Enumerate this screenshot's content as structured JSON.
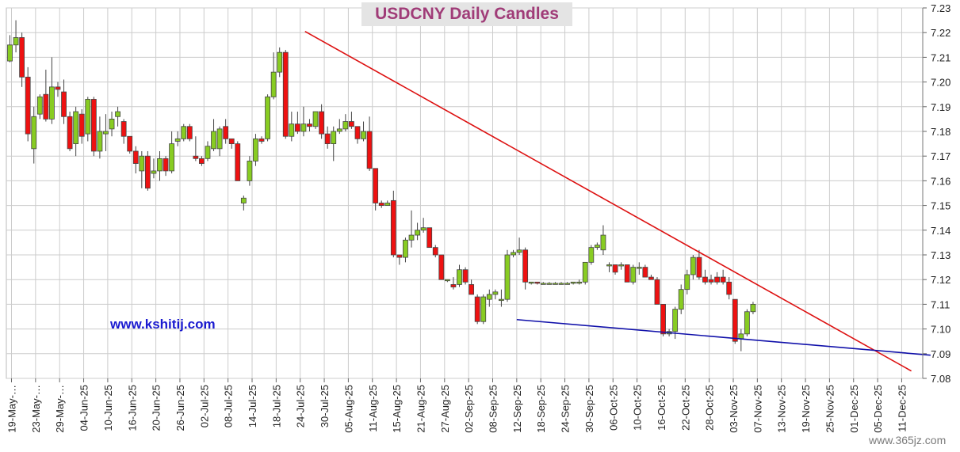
{
  "site": "www.kshitij.com",
  "watermark": "www.365jz.com",
  "chart_data": {
    "type": "candlestick",
    "title": "USDCNY Daily Candles",
    "ylim": [
      7.08,
      7.23
    ],
    "y_ticks": [
      "7.23",
      "7.22",
      "7.21",
      "7.20",
      "7.19",
      "7.18",
      "7.17",
      "7.16",
      "7.15",
      "7.14",
      "7.13",
      "7.12",
      "7.11",
      "7.10",
      "7.09",
      "7.08"
    ],
    "x_ticks": [
      "19-May-25",
      "23-May-25",
      "29-May-25",
      "04-Jun-25",
      "10-Jun-25",
      "16-Jun-25",
      "20-Jun-25",
      "26-Jun-25",
      "02-Jul-25",
      "08-Jul-25",
      "14-Jul-25",
      "18-Jul-25",
      "24-Jul-25",
      "30-Jul-25",
      "05-Aug-25",
      "11-Aug-25",
      "15-Aug-25",
      "21-Aug-25",
      "27-Aug-25",
      "02-Sep-25",
      "08-Sep-25",
      "12-Sep-25",
      "18-Sep-25",
      "24-Sep-25",
      "30-Sep-25",
      "06-Oct-25",
      "10-Oct-25",
      "16-Oct-25",
      "22-Oct-25",
      "28-Oct-25",
      "03-Nov-25",
      "07-Nov-25",
      "13-Nov-25",
      "19-Nov-25",
      "25-Nov-25",
      "01-Dec-25",
      "05-Dec-25",
      "11-Dec-25"
    ],
    "x_tick_display": [
      "19-May-…",
      "23-May-…",
      "29-May-…",
      "04-Jun-25",
      "10-Jun-25",
      "16-Jun-25",
      "20-Jun-25",
      "26-Jun-25",
      "02-Jul-25",
      "08-Jul-25",
      "14-Jul-25",
      "18-Jul-25",
      "24-Jul-25",
      "30-Jul-25",
      "05-Aug-25",
      "11-Aug-25",
      "15-Aug-25",
      "21-Aug-25",
      "27-Aug-25",
      "02-Sep-25",
      "08-Sep-25",
      "12-Sep-25",
      "18-Sep-25",
      "24-Sep-25",
      "30-Sep-25",
      "06-Oct-25",
      "10-Oct-25",
      "16-Oct-25",
      "22-Oct-25",
      "28-Oct-25",
      "03-Nov-25",
      "07-Nov-25",
      "13-Nov-25",
      "19-Nov-25",
      "25-Nov-25",
      "01-Dec-25",
      "05-Dec-25",
      "11-Dec-25"
    ],
    "grid": true,
    "candles": [
      {
        "o": 7.2085,
        "h": 7.219,
        "l": 7.208,
        "c": 7.215
      },
      {
        "o": 7.215,
        "h": 7.225,
        "l": 7.212,
        "c": 7.218
      },
      {
        "o": 7.218,
        "h": 7.22,
        "l": 7.198,
        "c": 7.202
      },
      {
        "o": 7.202,
        "h": 7.206,
        "l": 7.176,
        "c": 7.179
      },
      {
        "o": 7.173,
        "h": 7.19,
        "l": 7.167,
        "c": 7.186
      },
      {
        "o": 7.187,
        "h": 7.195,
        "l": 7.185,
        "c": 7.194
      },
      {
        "o": 7.195,
        "h": 7.205,
        "l": 7.184,
        "c": 7.185
      },
      {
        "o": 7.185,
        "h": 7.21,
        "l": 7.183,
        "c": 7.198
      },
      {
        "o": 7.198,
        "h": 7.2,
        "l": 7.194,
        "c": 7.197
      },
      {
        "o": 7.196,
        "h": 7.201,
        "l": 7.183,
        "c": 7.186
      },
      {
        "o": 7.186,
        "h": 7.188,
        "l": 7.172,
        "c": 7.173
      },
      {
        "o": 7.175,
        "h": 7.19,
        "l": 7.17,
        "c": 7.188
      },
      {
        "o": 7.187,
        "h": 7.189,
        "l": 7.175,
        "c": 7.178
      },
      {
        "o": 7.179,
        "h": 7.194,
        "l": 7.176,
        "c": 7.193
      },
      {
        "o": 7.193,
        "h": 7.194,
        "l": 7.17,
        "c": 7.172
      },
      {
        "o": 7.172,
        "h": 7.186,
        "l": 7.169,
        "c": 7.18
      },
      {
        "o": 7.179,
        "h": 7.187,
        "l": 7.172,
        "c": 7.18
      },
      {
        "o": 7.181,
        "h": 7.188,
        "l": 7.178,
        "c": 7.185
      },
      {
        "o": 7.186,
        "h": 7.19,
        "l": 7.182,
        "c": 7.188
      },
      {
        "o": 7.184,
        "h": 7.185,
        "l": 7.175,
        "c": 7.178
      },
      {
        "o": 7.178,
        "h": 7.178,
        "l": 7.171,
        "c": 7.172
      },
      {
        "o": 7.172,
        "h": 7.174,
        "l": 7.163,
        "c": 7.167
      },
      {
        "o": 7.164,
        "h": 7.172,
        "l": 7.157,
        "c": 7.17
      },
      {
        "o": 7.17,
        "h": 7.172,
        "l": 7.156,
        "c": 7.157
      },
      {
        "o": 7.163,
        "h": 7.169,
        "l": 7.161,
        "c": 7.164
      },
      {
        "o": 7.164,
        "h": 7.172,
        "l": 7.16,
        "c": 7.169
      },
      {
        "o": 7.169,
        "h": 7.17,
        "l": 7.162,
        "c": 7.164
      },
      {
        "o": 7.164,
        "h": 7.18,
        "l": 7.163,
        "c": 7.175
      },
      {
        "o": 7.176,
        "h": 7.18,
        "l": 7.174,
        "c": 7.177
      },
      {
        "o": 7.177,
        "h": 7.183,
        "l": 7.176,
        "c": 7.182
      },
      {
        "o": 7.182,
        "h": 7.183,
        "l": 7.176,
        "c": 7.177
      },
      {
        "o": 7.17,
        "h": 7.178,
        "l": 7.168,
        "c": 7.169
      },
      {
        "o": 7.169,
        "h": 7.17,
        "l": 7.166,
        "c": 7.167
      },
      {
        "o": 7.169,
        "h": 7.176,
        "l": 7.168,
        "c": 7.174
      },
      {
        "o": 7.173,
        "h": 7.185,
        "l": 7.172,
        "c": 7.18
      },
      {
        "o": 7.173,
        "h": 7.182,
        "l": 7.17,
        "c": 7.181
      },
      {
        "o": 7.182,
        "h": 7.185,
        "l": 7.175,
        "c": 7.177
      },
      {
        "o": 7.177,
        "h": 7.177,
        "l": 7.173,
        "c": 7.175
      },
      {
        "o": 7.175,
        "h": 7.176,
        "l": 7.16,
        "c": 7.16
      },
      {
        "o": 7.151,
        "h": 7.154,
        "l": 7.148,
        "c": 7.153
      },
      {
        "o": 7.16,
        "h": 7.17,
        "l": 7.158,
        "c": 7.168
      },
      {
        "o": 7.168,
        "h": 7.179,
        "l": 7.166,
        "c": 7.177
      },
      {
        "o": 7.177,
        "h": 7.178,
        "l": 7.175,
        "c": 7.176
      },
      {
        "o": 7.177,
        "h": 7.195,
        "l": 7.176,
        "c": 7.194
      },
      {
        "o": 7.194,
        "h": 7.212,
        "l": 7.193,
        "c": 7.204
      },
      {
        "o": 7.204,
        "h": 7.214,
        "l": 7.202,
        "c": 7.212
      },
      {
        "o": 7.212,
        "h": 7.213,
        "l": 7.177,
        "c": 7.178
      },
      {
        "o": 7.178,
        "h": 7.188,
        "l": 7.176,
        "c": 7.183
      },
      {
        "o": 7.183,
        "h": 7.188,
        "l": 7.179,
        "c": 7.18
      },
      {
        "o": 7.18,
        "h": 7.19,
        "l": 7.178,
        "c": 7.183
      },
      {
        "o": 7.183,
        "h": 7.185,
        "l": 7.18,
        "c": 7.182
      },
      {
        "o": 7.182,
        "h": 7.188,
        "l": 7.181,
        "c": 7.188
      },
      {
        "o": 7.188,
        "h": 7.191,
        "l": 7.177,
        "c": 7.179
      },
      {
        "o": 7.179,
        "h": 7.182,
        "l": 7.173,
        "c": 7.175
      },
      {
        "o": 7.175,
        "h": 7.182,
        "l": 7.168,
        "c": 7.18
      },
      {
        "o": 7.18,
        "h": 7.185,
        "l": 7.179,
        "c": 7.181
      },
      {
        "o": 7.181,
        "h": 7.187,
        "l": 7.18,
        "c": 7.184
      },
      {
        "o": 7.184,
        "h": 7.188,
        "l": 7.181,
        "c": 7.182
      },
      {
        "o": 7.182,
        "h": 7.182,
        "l": 7.175,
        "c": 7.177
      },
      {
        "o": 7.177,
        "h": 7.184,
        "l": 7.176,
        "c": 7.18
      },
      {
        "o": 7.18,
        "h": 7.186,
        "l": 7.164,
        "c": 7.165
      },
      {
        "o": 7.165,
        "h": 7.165,
        "l": 7.148,
        "c": 7.151
      },
      {
        "o": 7.151,
        "h": 7.152,
        "l": 7.149,
        "c": 7.15
      },
      {
        "o": 7.15,
        "h": 7.152,
        "l": 7.15,
        "c": 7.151
      },
      {
        "o": 7.152,
        "h": 7.156,
        "l": 7.129,
        "c": 7.13
      },
      {
        "o": 7.13,
        "h": 7.13,
        "l": 7.126,
        "c": 7.129
      },
      {
        "o": 7.129,
        "h": 7.137,
        "l": 7.127,
        "c": 7.136
      },
      {
        "o": 7.136,
        "h": 7.148,
        "l": 7.133,
        "c": 7.138
      },
      {
        "o": 7.138,
        "h": 7.143,
        "l": 7.136,
        "c": 7.14
      },
      {
        "o": 7.14,
        "h": 7.145,
        "l": 7.139,
        "c": 7.141
      },
      {
        "o": 7.141,
        "h": 7.141,
        "l": 7.133,
        "c": 7.133
      },
      {
        "o": 7.133,
        "h": 7.134,
        "l": 7.129,
        "c": 7.13
      },
      {
        "o": 7.13,
        "h": 7.13,
        "l": 7.12,
        "c": 7.12
      },
      {
        "o": 7.12,
        "h": 7.12,
        "l": 7.119,
        "c": 7.12
      },
      {
        "o": 7.118,
        "h": 7.121,
        "l": 7.116,
        "c": 7.117
      },
      {
        "o": 7.118,
        "h": 7.126,
        "l": 7.117,
        "c": 7.124
      },
      {
        "o": 7.124,
        "h": 7.125,
        "l": 7.118,
        "c": 7.119
      },
      {
        "o": 7.118,
        "h": 7.12,
        "l": 7.114,
        "c": 7.114
      },
      {
        "o": 7.113,
        "h": 7.114,
        "l": 7.102,
        "c": 7.103
      },
      {
        "o": 7.103,
        "h": 7.114,
        "l": 7.102,
        "c": 7.113
      },
      {
        "o": 7.112,
        "h": 7.116,
        "l": 7.109,
        "c": 7.114
      },
      {
        "o": 7.114,
        "h": 7.116,
        "l": 7.112,
        "c": 7.115
      },
      {
        "o": 7.112,
        "h": 7.116,
        "l": 7.109,
        "c": 7.112
      },
      {
        "o": 7.112,
        "h": 7.132,
        "l": 7.111,
        "c": 7.13
      },
      {
        "o": 7.13,
        "h": 7.132,
        "l": 7.129,
        "c": 7.131
      },
      {
        "o": 7.131,
        "h": 7.137,
        "l": 7.13,
        "c": 7.132
      },
      {
        "o": 7.132,
        "h": 7.133,
        "l": 7.116,
        "c": 7.119
      },
      {
        "o": 7.119,
        "h": 7.119,
        "l": 7.118,
        "c": 7.119
      },
      {
        "o": 7.119,
        "h": 7.119,
        "l": 7.118,
        "c": 7.1185
      },
      {
        "o": 7.1185,
        "h": 7.119,
        "l": 7.118,
        "c": 7.1185
      },
      {
        "o": 7.1185,
        "h": 7.119,
        "l": 7.118,
        "c": 7.1185
      },
      {
        "o": 7.1185,
        "h": 7.119,
        "l": 7.118,
        "c": 7.1185
      },
      {
        "o": 7.1185,
        "h": 7.119,
        "l": 7.118,
        "c": 7.1185
      },
      {
        "o": 7.1185,
        "h": 7.119,
        "l": 7.118,
        "c": 7.1185
      },
      {
        "o": 7.1185,
        "h": 7.119,
        "l": 7.118,
        "c": 7.119
      },
      {
        "o": 7.119,
        "h": 7.12,
        "l": 7.118,
        "c": 7.119
      },
      {
        "o": 7.119,
        "h": 7.127,
        "l": 7.118,
        "c": 7.127
      },
      {
        "o": 7.127,
        "h": 7.134,
        "l": 7.126,
        "c": 7.133
      },
      {
        "o": 7.133,
        "h": 7.135,
        "l": 7.132,
        "c": 7.134
      },
      {
        "o": 7.132,
        "h": 7.142,
        "l": 7.13,
        "c": 7.138
      },
      {
        "o": 7.126,
        "h": 7.127,
        "l": 7.123,
        "c": 7.126
      },
      {
        "o": 7.126,
        "h": 7.126,
        "l": 7.122,
        "c": 7.123
      },
      {
        "o": 7.126,
        "h": 7.127,
        "l": 7.124,
        "c": 7.126
      },
      {
        "o": 7.126,
        "h": 7.126,
        "l": 7.119,
        "c": 7.119
      },
      {
        "o": 7.119,
        "h": 7.126,
        "l": 7.118,
        "c": 7.125
      },
      {
        "o": 7.125,
        "h": 7.127,
        "l": 7.122,
        "c": 7.125
      },
      {
        "o": 7.125,
        "h": 7.126,
        "l": 7.121,
        "c": 7.121
      },
      {
        "o": 7.121,
        "h": 7.122,
        "l": 7.12,
        "c": 7.12
      },
      {
        "o": 7.12,
        "h": 7.121,
        "l": 7.11,
        "c": 7.11
      },
      {
        "o": 7.11,
        "h": 7.11,
        "l": 7.097,
        "c": 7.098
      },
      {
        "o": 7.098,
        "h": 7.1,
        "l": 7.097,
        "c": 7.099
      },
      {
        "o": 7.099,
        "h": 7.109,
        "l": 7.096,
        "c": 7.108
      },
      {
        "o": 7.108,
        "h": 7.118,
        "l": 7.106,
        "c": 7.116
      },
      {
        "o": 7.116,
        "h": 7.124,
        "l": 7.114,
        "c": 7.122
      },
      {
        "o": 7.122,
        "h": 7.13,
        "l": 7.12,
        "c": 7.129
      },
      {
        "o": 7.129,
        "h": 7.132,
        "l": 7.12,
        "c": 7.121
      },
      {
        "o": 7.121,
        "h": 7.124,
        "l": 7.118,
        "c": 7.119
      },
      {
        "o": 7.12,
        "h": 7.122,
        "l": 7.118,
        "c": 7.119
      },
      {
        "o": 7.121,
        "h": 7.123,
        "l": 7.118,
        "c": 7.119
      },
      {
        "o": 7.121,
        "h": 7.124,
        "l": 7.118,
        "c": 7.119
      },
      {
        "o": 7.119,
        "h": 7.121,
        "l": 7.112,
        "c": 7.114
      },
      {
        "o": 7.112,
        "h": 7.112,
        "l": 7.094,
        "c": 7.095
      },
      {
        "o": 7.096,
        "h": 7.1,
        "l": 7.091,
        "c": 7.098
      },
      {
        "o": 7.098,
        "h": 7.108,
        "l": 7.097,
        "c": 7.107
      },
      {
        "o": 7.107,
        "h": 7.111,
        "l": 7.106,
        "c": 7.11
      }
    ],
    "trendlines": [
      {
        "name": "resistance",
        "color": "#dd1111",
        "from": [
          12.2,
          7.2205
        ],
        "to": [
          37.4,
          7.083
        ]
      },
      {
        "name": "support",
        "color": "#1111aa",
        "from": [
          21.0,
          7.1038
        ],
        "to": [
          38.2,
          7.0894
        ]
      }
    ]
  },
  "colors": {
    "bull_fill": "#88cc22",
    "bear_fill": "#ee1111",
    "candle_outline": "#444444",
    "grid": "#cccccc",
    "title_bg": "#e4e4e4",
    "title_color": "#a03c78",
    "site_color": "#1a1ad0"
  }
}
